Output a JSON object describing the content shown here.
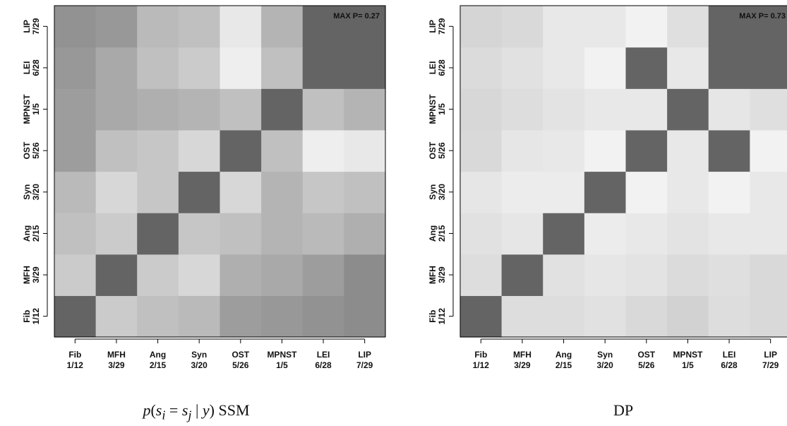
{
  "chart_data": [
    {
      "type": "heatmap",
      "panel": "left",
      "caption": "p(s_i = s_j | y) SSM",
      "caption_parts": {
        "func": "p",
        "s1": "s",
        "i": "i",
        "eq": "=",
        "s2": "s",
        "j": "j",
        "bar": "|",
        "y": "y",
        "name": "SSM"
      },
      "max_label": "MAX P= 0.27",
      "categories": [
        {
          "name": "Fib",
          "sub": "1/12"
        },
        {
          "name": "MFH",
          "sub": "3/29"
        },
        {
          "name": "Ang",
          "sub": "2/15"
        },
        {
          "name": "Syn",
          "sub": "3/20"
        },
        {
          "name": "OST",
          "sub": "5/26"
        },
        {
          "name": "MPNST",
          "sub": "1/5"
        },
        {
          "name": "LEI",
          "sub": "6/28"
        },
        {
          "name": "LIP",
          "sub": "7/29"
        }
      ],
      "values": [
        [
          0.27,
          0.09,
          0.11,
          0.12,
          0.17,
          0.18,
          0.19,
          0.2
        ],
        [
          0.09,
          0.27,
          0.09,
          0.07,
          0.14,
          0.15,
          0.17,
          0.2
        ],
        [
          0.11,
          0.09,
          0.27,
          0.1,
          0.11,
          0.13,
          0.12,
          0.14
        ],
        [
          0.12,
          0.07,
          0.1,
          0.27,
          0.07,
          0.13,
          0.1,
          0.11
        ],
        [
          0.17,
          0.11,
          0.1,
          0.07,
          0.27,
          0.11,
          0.03,
          0.04
        ],
        [
          0.17,
          0.15,
          0.14,
          0.13,
          0.11,
          0.27,
          0.11,
          0.13
        ],
        [
          0.18,
          0.15,
          0.11,
          0.09,
          0.03,
          0.11,
          0.27,
          0.27
        ],
        [
          0.19,
          0.18,
          0.12,
          0.11,
          0.04,
          0.13,
          0.27,
          0.27
        ]
      ],
      "color_scale": {
        "low": "#ffffff",
        "high": "#646464"
      }
    },
    {
      "type": "heatmap",
      "panel": "right",
      "caption": "DP",
      "max_label": "MAX P= 0.73",
      "categories": [
        {
          "name": "Fib",
          "sub": "1/12"
        },
        {
          "name": "MFH",
          "sub": "3/29"
        },
        {
          "name": "Ang",
          "sub": "2/15"
        },
        {
          "name": "Syn",
          "sub": "3/20"
        },
        {
          "name": "OST",
          "sub": "5/26"
        },
        {
          "name": "MPNST",
          "sub": "1/5"
        },
        {
          "name": "LEI",
          "sub": "6/28"
        },
        {
          "name": "LIP",
          "sub": "7/29"
        }
      ],
      "values": [
        [
          0.73,
          0.16,
          0.16,
          0.14,
          0.18,
          0.21,
          0.16,
          0.18
        ],
        [
          0.16,
          0.73,
          0.14,
          0.12,
          0.13,
          0.17,
          0.15,
          0.18
        ],
        [
          0.14,
          0.12,
          0.73,
          0.09,
          0.11,
          0.13,
          0.11,
          0.11
        ],
        [
          0.12,
          0.09,
          0.09,
          0.73,
          0.06,
          0.11,
          0.06,
          0.11
        ],
        [
          0.18,
          0.12,
          0.11,
          0.06,
          0.73,
          0.11,
          0.73,
          0.06
        ],
        [
          0.19,
          0.16,
          0.13,
          0.11,
          0.11,
          0.73,
          0.12,
          0.15
        ],
        [
          0.17,
          0.14,
          0.11,
          0.06,
          0.73,
          0.11,
          0.73,
          0.73
        ],
        [
          0.2,
          0.18,
          0.11,
          0.11,
          0.06,
          0.15,
          0.73,
          0.73
        ]
      ],
      "color_scale": {
        "low": "#ffffff",
        "high": "#646464"
      }
    }
  ]
}
